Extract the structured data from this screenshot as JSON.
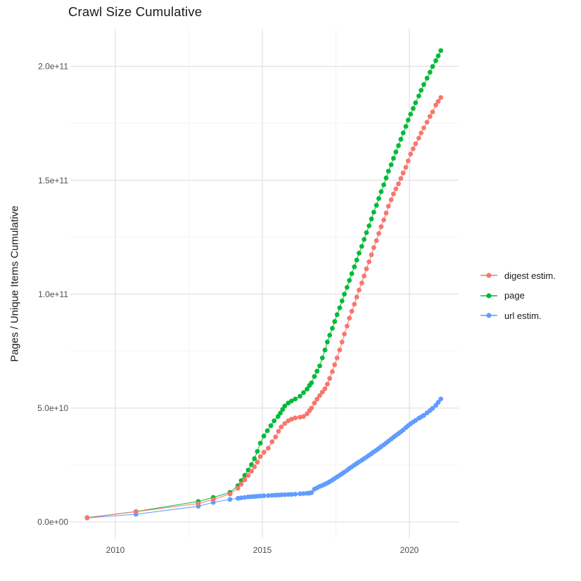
{
  "title": "Crawl Size Cumulative",
  "y_axis": {
    "label": "Pages / Unique Items Cumulative",
    "tick_labels": [
      "0.0e+00",
      "5.0e+10",
      "1.0e+11",
      "1.5e+11",
      "2.0e+11"
    ],
    "tick_values_billions": [
      0,
      50,
      100,
      150,
      200
    ],
    "minor_tick_values_billions": [
      25,
      75,
      125,
      175
    ]
  },
  "x_axis": {
    "tick_labels": [
      "2010",
      "2015",
      "2020"
    ],
    "tick_values": [
      2010,
      2015,
      2020
    ],
    "minor_tick_values": [
      2012.5,
      2017.5
    ]
  },
  "legend": {
    "items": [
      {
        "label": "digest estim.",
        "color": "#F8766D"
      },
      {
        "label": "page",
        "color": "#00BA38"
      },
      {
        "label": "url estim.",
        "color": "#619CFF"
      }
    ]
  },
  "style_colors": {
    "major_grid": "#e3e3e3",
    "minor_grid": "#f0f0f0",
    "tick_text": "#4d4d4d"
  },
  "chart_data": {
    "type": "line",
    "title": "Crawl Size Cumulative",
    "xlabel": "",
    "ylabel": "Pages / Unique Items Cumulative",
    "x_range": [
      2008.4,
      2021.7
    ],
    "y_range_billions": [
      -7,
      216
    ],
    "grid": true,
    "legend_position": "right",
    "units": "values are cumulative item counts in billions (1e9)",
    "series": [
      {
        "name": "digest estim.",
        "color": "#F8766D",
        "points": [
          [
            2009.04,
            1.85
          ],
          [
            2010.7,
            4.5
          ],
          [
            2012.82,
            8.1
          ],
          [
            2013.33,
            9.9
          ],
          [
            2013.9,
            12.3
          ],
          [
            2014.17,
            14.8
          ],
          [
            2014.28,
            16.6
          ],
          [
            2014.4,
            18.5
          ],
          [
            2014.52,
            20.4
          ],
          [
            2014.63,
            22.3
          ],
          [
            2014.73,
            24.2
          ],
          [
            2014.83,
            26.3
          ],
          [
            2014.93,
            28.7
          ],
          [
            2015.05,
            30.6
          ],
          [
            2015.2,
            32.4
          ],
          [
            2015.33,
            35.2
          ],
          [
            2015.45,
            37.3
          ],
          [
            2015.55,
            39.8
          ],
          [
            2015.64,
            41.7
          ],
          [
            2015.76,
            43.2
          ],
          [
            2015.88,
            44.4
          ],
          [
            2015.99,
            45.1
          ],
          [
            2016.12,
            45.7
          ],
          [
            2016.28,
            46.0
          ],
          [
            2016.4,
            46.3
          ],
          [
            2016.52,
            47.5
          ],
          [
            2016.6,
            48.8
          ],
          [
            2016.67,
            50.0
          ],
          [
            2016.77,
            52.2
          ],
          [
            2016.86,
            53.9
          ],
          [
            2016.95,
            55.5
          ],
          [
            2017.04,
            57.0
          ],
          [
            2017.13,
            58.5
          ],
          [
            2017.21,
            60.5
          ],
          [
            2017.29,
            63.0
          ],
          [
            2017.38,
            66.0
          ],
          [
            2017.46,
            69.0
          ],
          [
            2017.54,
            72.0
          ],
          [
            2017.63,
            75.5
          ],
          [
            2017.71,
            79.0
          ],
          [
            2017.79,
            82.5
          ],
          [
            2017.88,
            86.0
          ],
          [
            2017.96,
            89.5
          ],
          [
            2018.04,
            92.5
          ],
          [
            2018.13,
            95.6
          ],
          [
            2018.21,
            98.7
          ],
          [
            2018.29,
            101.8
          ],
          [
            2018.38,
            104.9
          ],
          [
            2018.46,
            108.0
          ],
          [
            2018.54,
            111.1
          ],
          [
            2018.63,
            114.2
          ],
          [
            2018.71,
            117.3
          ],
          [
            2018.79,
            120.4
          ],
          [
            2018.88,
            123.5
          ],
          [
            2018.96,
            126.6
          ],
          [
            2019.04,
            129.6
          ],
          [
            2019.13,
            132.6
          ],
          [
            2019.21,
            135.6
          ],
          [
            2019.29,
            138.6
          ],
          [
            2019.38,
            141.4
          ],
          [
            2019.46,
            144.0
          ],
          [
            2019.54,
            146.2
          ],
          [
            2019.63,
            148.4
          ],
          [
            2019.71,
            150.8
          ],
          [
            2019.79,
            153.2
          ],
          [
            2019.88,
            155.7
          ],
          [
            2019.96,
            158.5
          ],
          [
            2020.04,
            161.5
          ],
          [
            2020.13,
            163.8
          ],
          [
            2020.21,
            166.0
          ],
          [
            2020.32,
            168.5
          ],
          [
            2020.4,
            170.7
          ],
          [
            2020.49,
            173.0
          ],
          [
            2020.6,
            175.5
          ],
          [
            2020.7,
            178.0
          ],
          [
            2020.79,
            180.0
          ],
          [
            2020.9,
            183.0
          ],
          [
            2020.98,
            184.6
          ],
          [
            2021.07,
            186.3
          ]
        ]
      },
      {
        "name": "page",
        "color": "#00BA38",
        "points": [
          [
            2009.04,
            1.9
          ],
          [
            2010.7,
            4.6
          ],
          [
            2012.82,
            9.0
          ],
          [
            2013.33,
            10.8
          ],
          [
            2013.9,
            13.0
          ],
          [
            2014.17,
            16.0
          ],
          [
            2014.28,
            18.2
          ],
          [
            2014.4,
            20.5
          ],
          [
            2014.52,
            22.8
          ],
          [
            2014.63,
            25.2
          ],
          [
            2014.73,
            27.8
          ],
          [
            2014.83,
            31.0
          ],
          [
            2014.93,
            34.6
          ],
          [
            2015.05,
            37.7
          ],
          [
            2015.17,
            40.1
          ],
          [
            2015.29,
            42.3
          ],
          [
            2015.4,
            44.4
          ],
          [
            2015.53,
            46.3
          ],
          [
            2015.61,
            47.8
          ],
          [
            2015.69,
            49.4
          ],
          [
            2015.76,
            50.9
          ],
          [
            2015.88,
            52.2
          ],
          [
            2015.99,
            53.1
          ],
          [
            2016.12,
            54.0
          ],
          [
            2016.28,
            55.2
          ],
          [
            2016.4,
            56.8
          ],
          [
            2016.52,
            58.3
          ],
          [
            2016.6,
            59.9
          ],
          [
            2016.67,
            61.1
          ],
          [
            2016.77,
            63.9
          ],
          [
            2016.86,
            66.2
          ],
          [
            2016.95,
            68.5
          ],
          [
            2017.04,
            72.0
          ],
          [
            2017.13,
            75.5
          ],
          [
            2017.21,
            79.0
          ],
          [
            2017.29,
            82.0
          ],
          [
            2017.38,
            85.0
          ],
          [
            2017.46,
            88.0
          ],
          [
            2017.54,
            91.0
          ],
          [
            2017.63,
            94.0
          ],
          [
            2017.71,
            97.0
          ],
          [
            2017.79,
            100.0
          ],
          [
            2017.88,
            103.0
          ],
          [
            2017.96,
            106.0
          ],
          [
            2018.04,
            109.0
          ],
          [
            2018.13,
            112.0
          ],
          [
            2018.21,
            115.0
          ],
          [
            2018.29,
            118.0
          ],
          [
            2018.38,
            121.0
          ],
          [
            2018.46,
            124.0
          ],
          [
            2018.54,
            127.0
          ],
          [
            2018.63,
            130.0
          ],
          [
            2018.71,
            133.0
          ],
          [
            2018.79,
            136.0
          ],
          [
            2018.88,
            139.0
          ],
          [
            2018.96,
            142.0
          ],
          [
            2019.04,
            145.0
          ],
          [
            2019.13,
            148.0
          ],
          [
            2019.21,
            151.0
          ],
          [
            2019.29,
            154.0
          ],
          [
            2019.38,
            156.8
          ],
          [
            2019.46,
            159.6
          ],
          [
            2019.54,
            162.4
          ],
          [
            2019.63,
            165.2
          ],
          [
            2019.71,
            168.0
          ],
          [
            2019.79,
            170.8
          ],
          [
            2019.88,
            173.6
          ],
          [
            2019.96,
            176.4
          ],
          [
            2020.04,
            179.0
          ],
          [
            2020.13,
            181.5
          ],
          [
            2020.21,
            184.0
          ],
          [
            2020.32,
            187.0
          ],
          [
            2020.4,
            189.5
          ],
          [
            2020.49,
            192.0
          ],
          [
            2020.6,
            194.8
          ],
          [
            2020.7,
            197.4
          ],
          [
            2020.79,
            199.9
          ],
          [
            2020.9,
            202.5
          ],
          [
            2020.98,
            204.6
          ],
          [
            2021.07,
            206.9
          ]
        ]
      },
      {
        "name": "url estim.",
        "color": "#619CFF",
        "points": [
          [
            2009.04,
            1.8
          ],
          [
            2010.7,
            3.4
          ],
          [
            2012.82,
            6.9
          ],
          [
            2013.33,
            8.6
          ],
          [
            2013.9,
            9.9
          ],
          [
            2014.17,
            10.4
          ],
          [
            2014.28,
            10.6
          ],
          [
            2014.4,
            10.8
          ],
          [
            2014.52,
            11.0
          ],
          [
            2014.63,
            11.1
          ],
          [
            2014.73,
            11.2
          ],
          [
            2014.83,
            11.3
          ],
          [
            2014.93,
            11.4
          ],
          [
            2015.05,
            11.5
          ],
          [
            2015.2,
            11.6
          ],
          [
            2015.33,
            11.7
          ],
          [
            2015.45,
            11.8
          ],
          [
            2015.55,
            11.85
          ],
          [
            2015.64,
            11.9
          ],
          [
            2015.76,
            12.0
          ],
          [
            2015.88,
            12.05
          ],
          [
            2015.99,
            12.1
          ],
          [
            2016.12,
            12.2
          ],
          [
            2016.28,
            12.35
          ],
          [
            2016.4,
            12.5
          ],
          [
            2016.52,
            12.6
          ],
          [
            2016.6,
            12.7
          ],
          [
            2016.67,
            12.9
          ],
          [
            2016.77,
            14.4
          ],
          [
            2016.86,
            15.0
          ],
          [
            2016.95,
            15.6
          ],
          [
            2017.04,
            16.1
          ],
          [
            2017.13,
            16.6
          ],
          [
            2017.21,
            17.1
          ],
          [
            2017.29,
            17.7
          ],
          [
            2017.38,
            18.4
          ],
          [
            2017.46,
            19.1
          ],
          [
            2017.54,
            19.8
          ],
          [
            2017.63,
            20.5
          ],
          [
            2017.71,
            21.2
          ],
          [
            2017.79,
            21.9
          ],
          [
            2017.88,
            22.7
          ],
          [
            2017.96,
            23.5
          ],
          [
            2018.04,
            24.2
          ],
          [
            2018.13,
            25.0
          ],
          [
            2018.21,
            25.7
          ],
          [
            2018.29,
            26.4
          ],
          [
            2018.38,
            27.1
          ],
          [
            2018.46,
            27.8
          ],
          [
            2018.54,
            28.5
          ],
          [
            2018.63,
            29.3
          ],
          [
            2018.71,
            30.0
          ],
          [
            2018.79,
            30.8
          ],
          [
            2018.88,
            31.5
          ],
          [
            2018.96,
            32.3
          ],
          [
            2019.04,
            33.1
          ],
          [
            2019.13,
            33.9
          ],
          [
            2019.21,
            34.7
          ],
          [
            2019.29,
            35.5
          ],
          [
            2019.38,
            36.4
          ],
          [
            2019.46,
            37.2
          ],
          [
            2019.54,
            38.0
          ],
          [
            2019.63,
            38.8
          ],
          [
            2019.71,
            39.6
          ],
          [
            2019.79,
            40.4
          ],
          [
            2019.88,
            41.4
          ],
          [
            2019.96,
            42.3
          ],
          [
            2020.04,
            43.1
          ],
          [
            2020.13,
            43.9
          ],
          [
            2020.21,
            44.6
          ],
          [
            2020.32,
            45.5
          ],
          [
            2020.4,
            46.1
          ],
          [
            2020.49,
            46.8
          ],
          [
            2020.6,
            47.9
          ],
          [
            2020.7,
            48.9
          ],
          [
            2020.79,
            49.9
          ],
          [
            2020.9,
            51.2
          ],
          [
            2020.98,
            52.5
          ],
          [
            2021.07,
            54.0
          ]
        ]
      }
    ]
  }
}
